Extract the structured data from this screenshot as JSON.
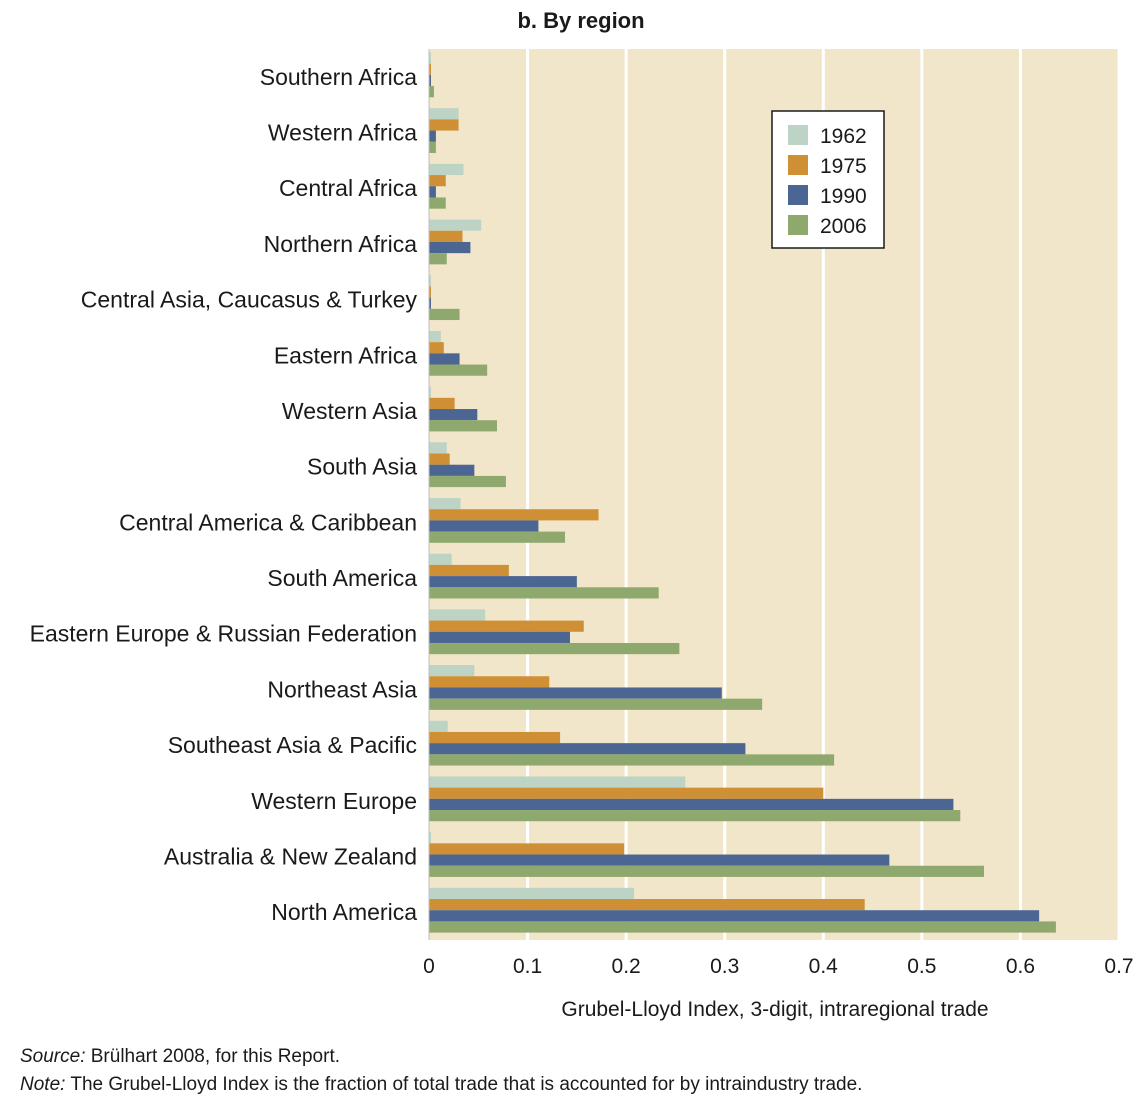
{
  "chart_data": {
    "type": "bar",
    "orientation": "horizontal",
    "title": "b. By region",
    "xlabel": "Grubel-Lloyd Index, 3-digit, intraregional trade",
    "ylabel": "",
    "xlim": [
      0,
      0.7
    ],
    "xticks": [
      "0",
      "0.1",
      "0.2",
      "0.3",
      "0.4",
      "0.5",
      "0.6",
      "0.7"
    ],
    "grid": true,
    "legend_position": "top-right",
    "colors": {
      "background": "#f2e6ca",
      "grid": "#ffffff",
      "1962": "#bcd3c6",
      "1975": "#cf9035",
      "1990": "#4b6693",
      "2006": "#8ea86e"
    },
    "categories": [
      "Southern Africa",
      "Western Africa",
      "Central Africa",
      "Northern Africa",
      "Central Asia, Caucasus & Turkey",
      "Eastern Africa",
      "Western Asia",
      "South Asia",
      "Central America & Caribbean",
      "South America",
      "Eastern Europe & Russian Federation",
      "Northeast Asia",
      "Southeast Asia & Pacific",
      "Western Europe",
      "Australia & New Zealand",
      "North America"
    ],
    "series": [
      {
        "name": "1962",
        "values": [
          0.002,
          0.03,
          0.035,
          0.053,
          0.002,
          0.012,
          0.002,
          0.018,
          0.032,
          0.023,
          0.057,
          0.046,
          0.019,
          0.26,
          0.002,
          0.208
        ]
      },
      {
        "name": "1975",
        "values": [
          0.002,
          0.03,
          0.017,
          0.034,
          0.002,
          0.015,
          0.026,
          0.021,
          0.172,
          0.081,
          0.157,
          0.122,
          0.133,
          0.4,
          0.198,
          0.442
        ]
      },
      {
        "name": "1990",
        "values": [
          0.002,
          0.007,
          0.007,
          0.042,
          0.002,
          0.031,
          0.049,
          0.046,
          0.111,
          0.15,
          0.143,
          0.297,
          0.321,
          0.532,
          0.467,
          0.619
        ]
      },
      {
        "name": "2006",
        "values": [
          0.005,
          0.007,
          0.017,
          0.018,
          0.031,
          0.059,
          0.069,
          0.078,
          0.138,
          0.233,
          0.254,
          0.338,
          0.411,
          0.539,
          0.563,
          0.636
        ]
      }
    ]
  },
  "footnotes": {
    "source_label": "Source:",
    "source_text": " Brülhart 2008, for this Report.",
    "note_label": "Note:",
    "note_text": " The Grubel-Lloyd Index is the fraction of total trade that is accounted for by intraindustry trade."
  }
}
